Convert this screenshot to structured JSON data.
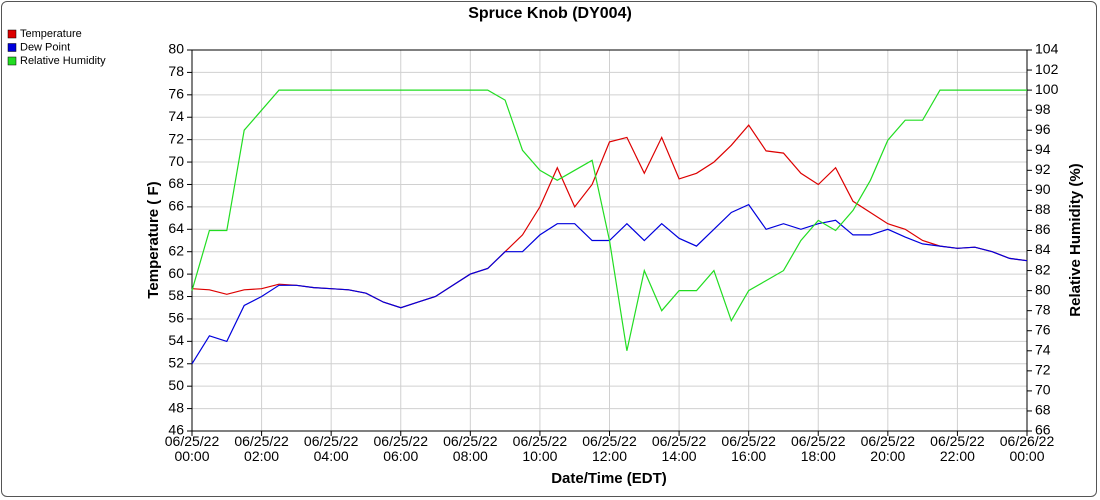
{
  "chart_data": {
    "type": "line",
    "title": "Spruce Knob (DY004)",
    "xlabel": "Date/Time (EDT)",
    "ylabel": "Temperature ( F)",
    "y2label": "Relative Humidity (%)",
    "x": [
      0,
      0.5,
      1,
      1.5,
      2,
      2.5,
      3,
      3.5,
      4,
      4.5,
      5,
      5.5,
      6,
      6.5,
      7,
      7.5,
      8,
      8.5,
      9,
      9.5,
      10,
      10.5,
      11,
      11.5,
      12,
      12.5,
      13,
      13.5,
      14,
      14.5,
      15,
      15.5,
      16,
      16.5,
      17,
      17.5,
      18,
      18.5,
      19,
      19.5,
      20,
      20.5,
      21,
      21.5,
      22,
      22.5,
      23,
      23.5,
      24
    ],
    "series": [
      {
        "name": "Temperature",
        "color": "#dd0000",
        "values": [
          58.7,
          58.6,
          58.2,
          58.6,
          58.7,
          59.1,
          59.0,
          58.8,
          58.7,
          58.6,
          58.3,
          57.5,
          57.0,
          57.5,
          58.0,
          59.0,
          60.0,
          60.5,
          62.0,
          63.5,
          66.0,
          69.5,
          66.0,
          68.0,
          71.8,
          72.2,
          69.0,
          72.2,
          68.5,
          69.0,
          70.0,
          71.5,
          73.3,
          71.0,
          70.8,
          69.0,
          68.0,
          69.5,
          66.5,
          65.5,
          64.5,
          64.0,
          63.0,
          62.5,
          62.3,
          62.4,
          62.0,
          61.4,
          61.2
        ]
      },
      {
        "name": "Dew Point",
        "color": "#0000dd",
        "values": [
          52.0,
          54.5,
          54.0,
          57.2,
          58.0,
          59.0,
          59.0,
          58.8,
          58.7,
          58.6,
          58.3,
          57.5,
          57.0,
          57.5,
          58.0,
          59.0,
          60.0,
          60.5,
          62.0,
          62.0,
          63.5,
          64.5,
          64.5,
          63.0,
          63.0,
          64.5,
          63.0,
          64.5,
          63.2,
          62.5,
          64.0,
          65.5,
          66.2,
          64.0,
          64.5,
          64.0,
          64.5,
          64.8,
          63.5,
          63.5,
          64.0,
          63.3,
          62.7,
          62.5,
          62.3,
          62.4,
          62.0,
          61.4,
          61.2
        ]
      },
      {
        "name": "Relative Humidity",
        "color": "#22dd22",
        "axis": "y2",
        "values": [
          80,
          86,
          86,
          96,
          98,
          100,
          100,
          100,
          100,
          100,
          100,
          100,
          100,
          100,
          100,
          100,
          100,
          100,
          99,
          94,
          92,
          91,
          92,
          93,
          85,
          74,
          82,
          78,
          80,
          80,
          82,
          77,
          80,
          81,
          82,
          85,
          87,
          86,
          88,
          91,
          95,
          97,
          97,
          100,
          100,
          100,
          100,
          100,
          100
        ]
      }
    ],
    "xlim": [
      0,
      24
    ],
    "xticks": [
      {
        "value": 0,
        "label": "06/25/22 00:00"
      },
      {
        "value": 2,
        "label": "06/25/22 02:00"
      },
      {
        "value": 4,
        "label": "06/25/22 04:00"
      },
      {
        "value": 6,
        "label": "06/25/22 06:00"
      },
      {
        "value": 8,
        "label": "06/25/22 08:00"
      },
      {
        "value": 10,
        "label": "06/25/22 10:00"
      },
      {
        "value": 12,
        "label": "06/25/22 12:00"
      },
      {
        "value": 14,
        "label": "06/25/22 14:00"
      },
      {
        "value": 16,
        "label": "06/25/22 16:00"
      },
      {
        "value": 18,
        "label": "06/25/22 18:00"
      },
      {
        "value": 20,
        "label": "06/25/22 20:00"
      },
      {
        "value": 22,
        "label": "06/25/22 22:00"
      },
      {
        "value": 24,
        "label": "06/26/22 00:00"
      }
    ],
    "ylim": [
      46,
      80
    ],
    "yticks": [
      46,
      48,
      50,
      52,
      54,
      56,
      58,
      60,
      62,
      64,
      66,
      68,
      70,
      72,
      74,
      76,
      78,
      80
    ],
    "y2lim": [
      66,
      104
    ],
    "y2ticks": [
      66,
      68,
      70,
      72,
      74,
      76,
      78,
      80,
      82,
      84,
      86,
      88,
      90,
      92,
      94,
      96,
      98,
      100,
      102,
      104
    ],
    "grid": true,
    "legend": "top-left"
  }
}
